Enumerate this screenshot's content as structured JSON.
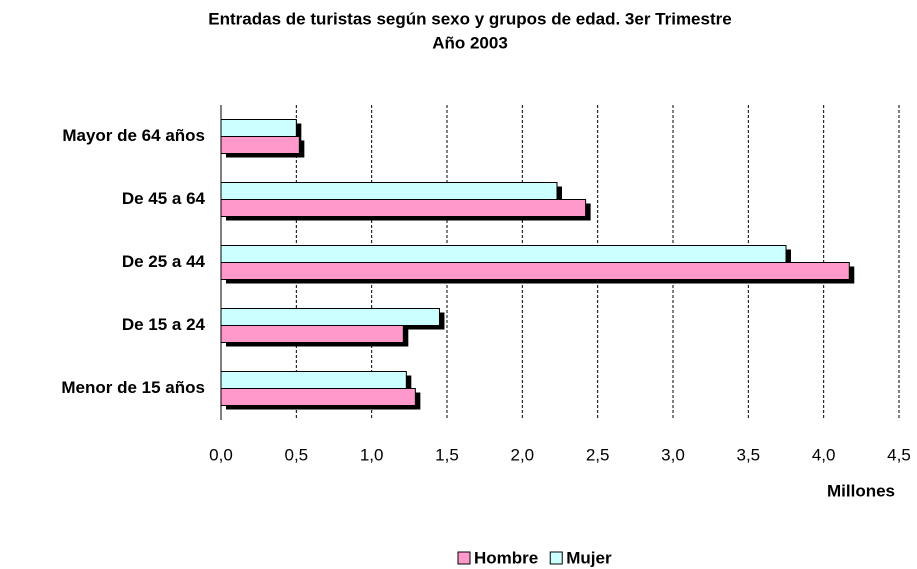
{
  "chart_data": {
    "type": "bar",
    "orientation": "horizontal",
    "title": "Entradas de turistas según sexo y grupos de edad. 3er Trimestre",
    "subtitle": "Año 2003",
    "x_label": "Millones",
    "categories": [
      "Mayor de 64 años",
      "De 45 a 64",
      "De 25 a 44",
      "De 15 a 24",
      "Menor de 15 años"
    ],
    "series": [
      {
        "name": "Hombre",
        "color": "#ff99cc",
        "values": [
          0.52,
          2.42,
          4.17,
          1.21,
          1.29
        ]
      },
      {
        "name": "Mujer",
        "color": "#ccffff",
        "values": [
          0.5,
          2.23,
          3.75,
          1.45,
          1.23
        ]
      }
    ],
    "xlim": [
      0,
      4.5
    ],
    "xticks": [
      {
        "value": 0,
        "label": "0,0"
      },
      {
        "value": 0.5,
        "label": "0,5"
      },
      {
        "value": 1,
        "label": "1,0"
      },
      {
        "value": 1.5,
        "label": "1,5"
      },
      {
        "value": 2,
        "label": "2,0"
      },
      {
        "value": 2.5,
        "label": "2,5"
      },
      {
        "value": 3,
        "label": "3,0"
      },
      {
        "value": 3.5,
        "label": "3,5"
      },
      {
        "value": 4,
        "label": "4,0"
      },
      {
        "value": 4.5,
        "label": "4,5"
      }
    ],
    "grid": true,
    "legend": "bottom"
  }
}
